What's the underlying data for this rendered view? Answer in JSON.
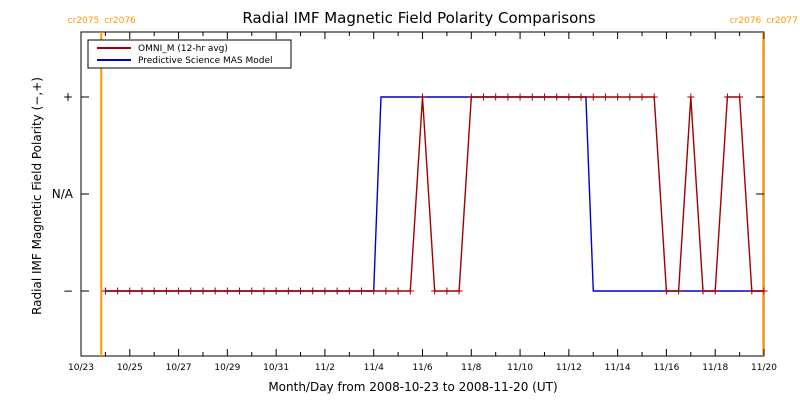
{
  "chart_data": {
    "type": "line",
    "title": "Radial IMF Magnetic Field Polarity Comparisons",
    "xlabel": "Month/Day from 2008-10-23 to 2008-11-20 (UT)",
    "ylabel": "Radial IMF Magnetic Field Polarity (−,+)",
    "xlim": [
      0,
      28
    ],
    "ylim": [
      -1.67,
      1.67
    ],
    "y_ticks": [
      {
        "value": 1,
        "label": "+"
      },
      {
        "value": 0,
        "label": "N/A"
      },
      {
        "value": -1,
        "label": "−"
      }
    ],
    "x_ticks": [
      {
        "day": 0,
        "label": "10/23"
      },
      {
        "day": 2,
        "label": "10/25"
      },
      {
        "day": 4,
        "label": "10/27"
      },
      {
        "day": 6,
        "label": "10/29"
      },
      {
        "day": 8,
        "label": "10/31"
      },
      {
        "day": 10,
        "label": "11/2"
      },
      {
        "day": 12,
        "label": "11/4"
      },
      {
        "day": 14,
        "label": "11/6"
      },
      {
        "day": 16,
        "label": "11/8"
      },
      {
        "day": 18,
        "label": "11/10"
      },
      {
        "day": 20,
        "label": "11/12"
      },
      {
        "day": 22,
        "label": "11/14"
      },
      {
        "day": 24,
        "label": "11/16"
      },
      {
        "day": 26,
        "label": "11/18"
      },
      {
        "day": 28,
        "label": "11/20"
      }
    ],
    "carrington_markers": [
      {
        "day": 0.83,
        "left_label": "cr2075",
        "right_label": "cr2076"
      },
      {
        "day": 27.97,
        "left_label": "cr2076",
        "right_label": "cr2077"
      }
    ],
    "legend": {
      "position": "top-left"
    },
    "series": [
      {
        "name": "OMNI_M (12-hr avg)",
        "color": "#a00000",
        "markers": true,
        "x": [
          1,
          1.5,
          2,
          2.5,
          3,
          3.5,
          4,
          4.5,
          5,
          5.5,
          6,
          6.5,
          7,
          7.5,
          8,
          8.5,
          9,
          9.5,
          10,
          10.5,
          11,
          11.5,
          12,
          12.5,
          13,
          13.5,
          14,
          14.5,
          15,
          15.5,
          16,
          16.5,
          17,
          17.5,
          18,
          18.5,
          19,
          19.5,
          20,
          20.5,
          21,
          21.5,
          22,
          22.5,
          23,
          23.5,
          24,
          24.5,
          25,
          25.5,
          26,
          26.5,
          27,
          27.5,
          28
        ],
        "y": [
          -1,
          -1,
          -1,
          -1,
          -1,
          -1,
          -1,
          -1,
          -1,
          -1,
          -1,
          -1,
          -1,
          -1,
          -1,
          -1,
          -1,
          -1,
          -1,
          -1,
          -1,
          -1,
          -1,
          -1,
          -1,
          -1,
          1,
          -1,
          -1,
          -1,
          1,
          1,
          1,
          1,
          1,
          1,
          1,
          1,
          1,
          1,
          1,
          1,
          1,
          1,
          1,
          1,
          -1,
          -1,
          1,
          -1,
          -1,
          1,
          1,
          -1,
          -1
        ]
      },
      {
        "name": "Predictive Science MAS Model",
        "color": "#0000cc",
        "markers": false,
        "x": [
          1,
          12.0,
          12.3,
          20.7,
          21.0,
          28
        ],
        "y": [
          -1,
          -1,
          1,
          1,
          -1,
          -1
        ]
      }
    ]
  }
}
